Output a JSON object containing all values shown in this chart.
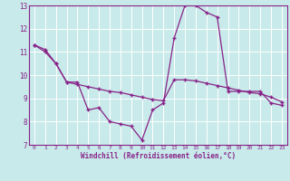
{
  "xlabel": "Windchill (Refroidissement éolien,°C)",
  "x": [
    0,
    1,
    2,
    3,
    4,
    5,
    6,
    7,
    8,
    9,
    10,
    11,
    12,
    13,
    14,
    15,
    16,
    17,
    18,
    19,
    20,
    21,
    22,
    23
  ],
  "temp_line": [
    11.3,
    11.1,
    10.5,
    9.7,
    9.7,
    8.5,
    8.6,
    8.0,
    7.9,
    7.8,
    7.2,
    8.5,
    8.8,
    11.6,
    13.0,
    13.0,
    12.7,
    12.5,
    9.3,
    9.3,
    9.3,
    9.3,
    8.8,
    8.7
  ],
  "wind_line": [
    11.3,
    11.0,
    10.5,
    9.7,
    9.6,
    9.5,
    9.4,
    9.3,
    9.25,
    9.15,
    9.05,
    8.95,
    8.9,
    9.8,
    9.8,
    9.75,
    9.65,
    9.55,
    9.45,
    9.35,
    9.25,
    9.2,
    9.05,
    8.85
  ],
  "line_color": "#882288",
  "bg_color": "#c8eaea",
  "grid_color": "#b0d8d8",
  "ylim": [
    7,
    13
  ],
  "xlim": [
    -0.5,
    23.5
  ],
  "yticks": [
    7,
    8,
    9,
    10,
    11,
    12,
    13
  ],
  "xticks": [
    0,
    1,
    2,
    3,
    4,
    5,
    6,
    7,
    8,
    9,
    10,
    11,
    12,
    13,
    14,
    15,
    16,
    17,
    18,
    19,
    20,
    21,
    22,
    23
  ]
}
